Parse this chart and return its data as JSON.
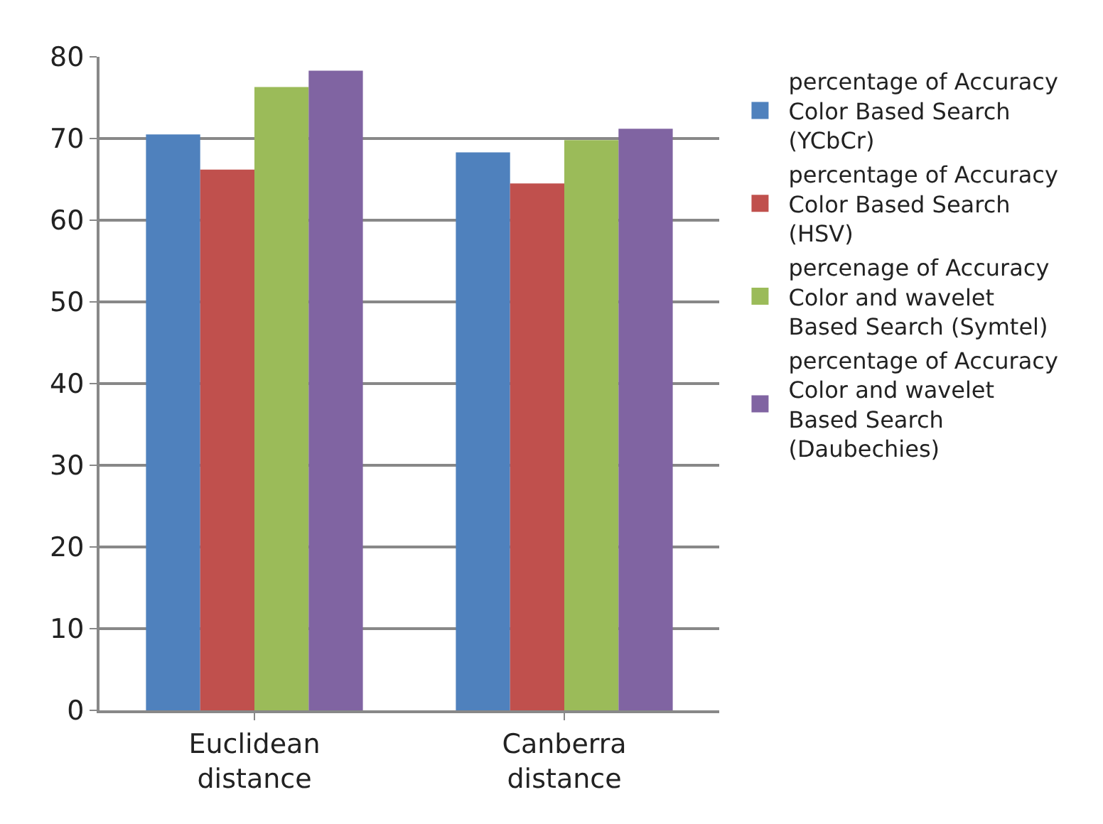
{
  "chart_data": {
    "type": "bar",
    "categories": [
      "Euclidean distance",
      "Canberra distance"
    ],
    "series": [
      {
        "name": "percentage of Accuracy Color Based Search (YCbCr)",
        "color": "#4f81bd",
        "values": [
          70.5,
          68.3
        ]
      },
      {
        "name": "percentage of Accuracy Color Based Search (HSV)",
        "color": "#c0504d",
        "values": [
          66.2,
          64.5
        ]
      },
      {
        "name": "percenage of Accuracy Color and wavelet Based Search (Symtel)",
        "color": "#9bbb59",
        "values": [
          76.3,
          69.8
        ]
      },
      {
        "name": "percentage of Accuracy Color and wavelet Based Search (Daubechies)",
        "color": "#8064a2",
        "values": [
          78.3,
          71.2
        ]
      }
    ],
    "ylim": [
      0,
      80
    ],
    "yticks": [
      0,
      10,
      20,
      30,
      40,
      50,
      60,
      70,
      80
    ],
    "grid": "y",
    "legend": "right"
  }
}
